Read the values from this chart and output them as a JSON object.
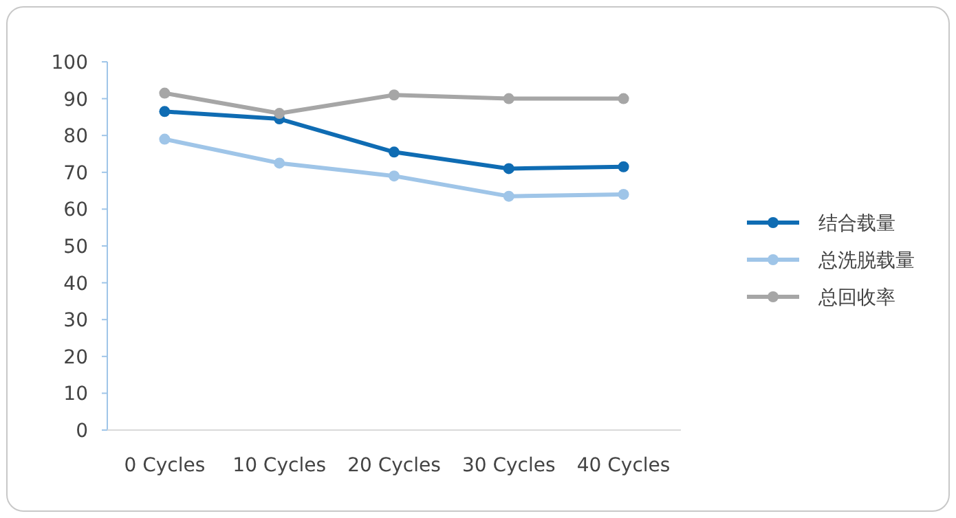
{
  "chart_data": {
    "type": "line",
    "categories": [
      "0 Cycles",
      "10 Cycles",
      "20 Cycles",
      "30 Cycles",
      "40 Cycles"
    ],
    "series": [
      {
        "name": "结合载量",
        "color": "#0f6cb3",
        "values": [
          86.5,
          84.5,
          75.5,
          71,
          71.5
        ]
      },
      {
        "name": "总洗脱载量",
        "color": "#9fc5e8",
        "values": [
          79,
          72.5,
          69,
          63.5,
          64
        ]
      },
      {
        "name": "总回收率",
        "color": "#a6a6a6",
        "values": [
          91.5,
          86,
          91,
          90,
          90
        ]
      }
    ],
    "ylim": [
      0,
      100
    ],
    "yticks": [
      0,
      10,
      20,
      30,
      40,
      50,
      60,
      70,
      80,
      90,
      100
    ],
    "grid": false,
    "legend": "right",
    "marker": "circle",
    "line_style": "solid"
  }
}
